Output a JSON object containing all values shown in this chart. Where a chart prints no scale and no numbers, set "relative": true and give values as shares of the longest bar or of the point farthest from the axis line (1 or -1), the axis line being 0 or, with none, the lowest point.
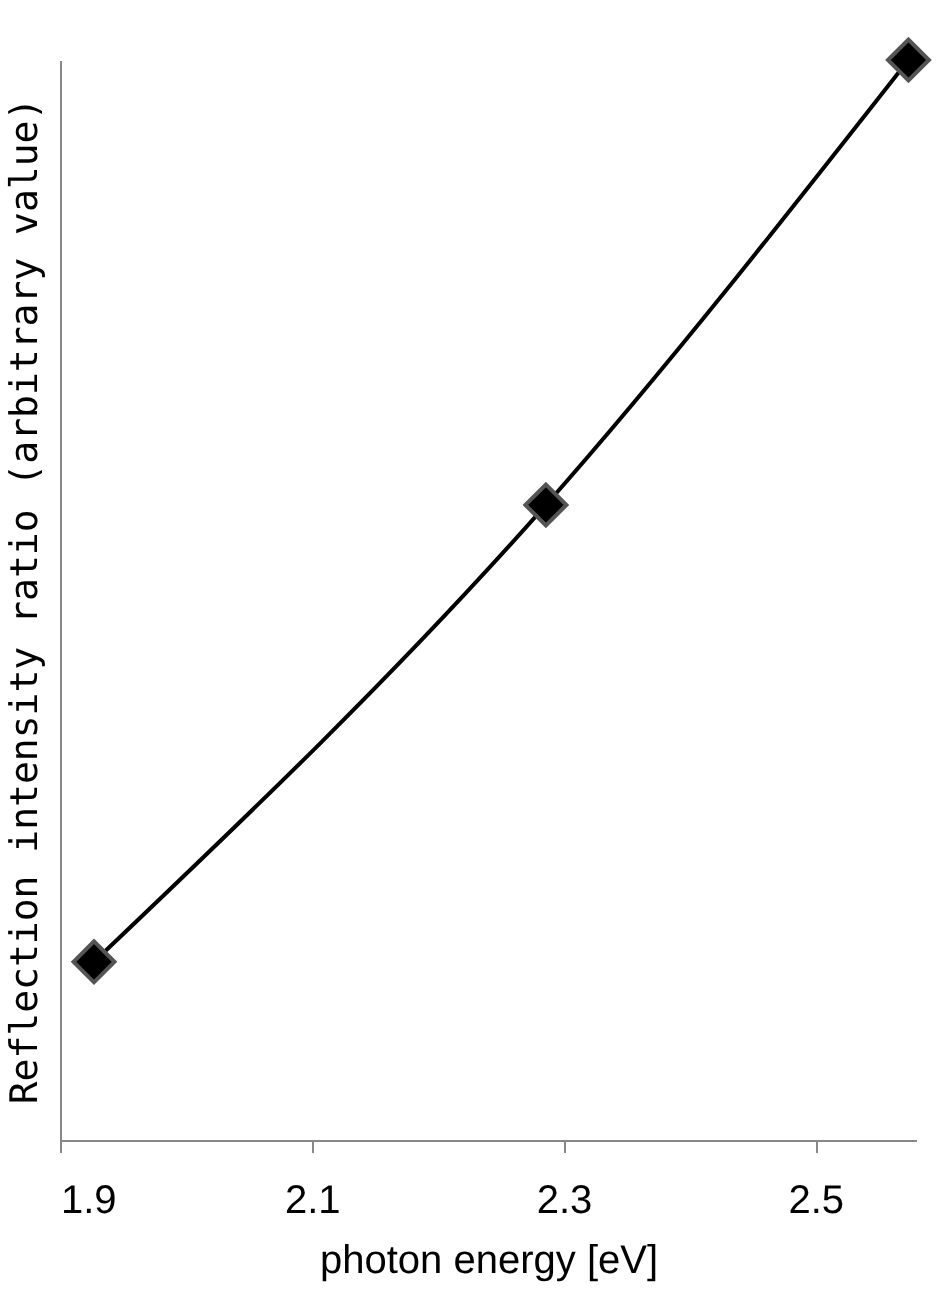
{
  "chart_data": {
    "type": "line",
    "xlabel": "photon energy [eV]",
    "ylabel": "Reflection intensity ratio (arbitrary value)",
    "x": [
      1.927,
      2.286,
      2.574
    ],
    "relative": true,
    "series": [
      {
        "color": "#000000",
        "values": [
          0.165,
          0.588,
          1.0
        ]
      }
    ],
    "xlim": [
      1.9,
      2.58
    ],
    "xticks": [
      1.9,
      2.1,
      2.3,
      2.5
    ],
    "marker": "diamond",
    "line_style": "solid",
    "grid": false,
    "legend": false
  }
}
